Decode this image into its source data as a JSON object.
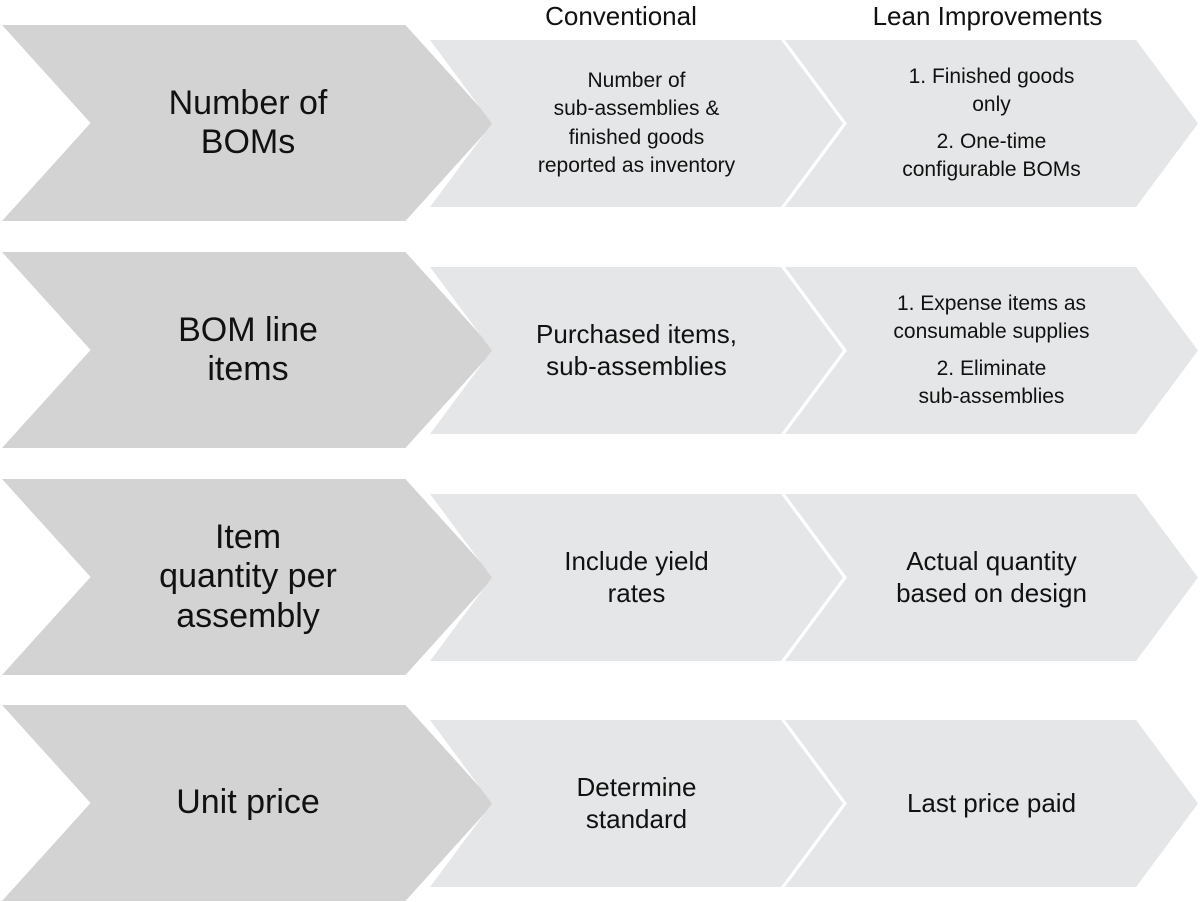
{
  "headers": {
    "conventional": "Conventional",
    "lean": "Lean Improvements"
  },
  "rows": [
    {
      "label_lines": [
        "Number of",
        "BOMs"
      ],
      "conventional_lines": [
        "Number of",
        "sub-assemblies &",
        "finished goods",
        "reported as inventory"
      ],
      "lean_items": [
        [
          "1. Finished goods",
          "only"
        ],
        [
          "2. One-time",
          "configurable BOMs"
        ]
      ]
    },
    {
      "label_lines": [
        "BOM line",
        "items"
      ],
      "conventional_lines": [
        "Purchased items,",
        "sub-assemblies"
      ],
      "lean_items": [
        [
          "1. Expense items as",
          "consumable supplies"
        ],
        [
          "2. Eliminate",
          "sub-assemblies"
        ]
      ]
    },
    {
      "label_lines": [
        "Item",
        "quantity per",
        "assembly"
      ],
      "conventional_lines": [
        "Include yield",
        "rates"
      ],
      "lean_items": [
        [
          "Actual quantity",
          "based on design"
        ]
      ]
    },
    {
      "label_lines": [
        "Unit price"
      ],
      "conventional_lines": [
        "Determine",
        "standard"
      ],
      "lean_items": [
        [
          "Last price paid"
        ]
      ]
    }
  ]
}
